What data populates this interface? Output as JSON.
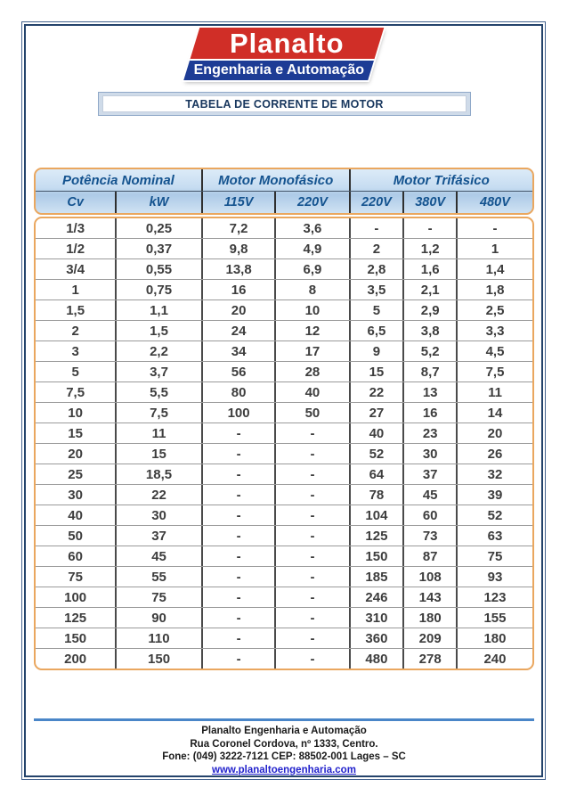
{
  "logo": {
    "name": "Planalto",
    "tagline": "Engenharia e Automação"
  },
  "title": "TABELA DE CORRENTE DE MOTOR",
  "table": {
    "groups": [
      {
        "label": "Potência Nominal",
        "cols": 2
      },
      {
        "label": "Motor Monofásico",
        "cols": 2
      },
      {
        "label": "Motor Trifásico",
        "cols": 3
      }
    ],
    "columns": [
      "Cv",
      "kW",
      "115V",
      "220V",
      "220V",
      "380V",
      "480V"
    ],
    "rows": [
      [
        "1/3",
        "0,25",
        "7,2",
        "3,6",
        "-",
        "-",
        "-"
      ],
      [
        "1/2",
        "0,37",
        "9,8",
        "4,9",
        "2",
        "1,2",
        "1"
      ],
      [
        "3/4",
        "0,55",
        "13,8",
        "6,9",
        "2,8",
        "1,6",
        "1,4"
      ],
      [
        "1",
        "0,75",
        "16",
        "8",
        "3,5",
        "2,1",
        "1,8"
      ],
      [
        "1,5",
        "1,1",
        "20",
        "10",
        "5",
        "2,9",
        "2,5"
      ],
      [
        "2",
        "1,5",
        "24",
        "12",
        "6,5",
        "3,8",
        "3,3"
      ],
      [
        "3",
        "2,2",
        "34",
        "17",
        "9",
        "5,2",
        "4,5"
      ],
      [
        "5",
        "3,7",
        "56",
        "28",
        "15",
        "8,7",
        "7,5"
      ],
      [
        "7,5",
        "5,5",
        "80",
        "40",
        "22",
        "13",
        "11"
      ],
      [
        "10",
        "7,5",
        "100",
        "50",
        "27",
        "16",
        "14"
      ],
      [
        "15",
        "11",
        "-",
        "-",
        "40",
        "23",
        "20"
      ],
      [
        "20",
        "15",
        "-",
        "-",
        "52",
        "30",
        "26"
      ],
      [
        "25",
        "18,5",
        "-",
        "-",
        "64",
        "37",
        "32"
      ],
      [
        "30",
        "22",
        "-",
        "-",
        "78",
        "45",
        "39"
      ],
      [
        "40",
        "30",
        "-",
        "-",
        "104",
        "60",
        "52"
      ],
      [
        "50",
        "37",
        "-",
        "-",
        "125",
        "73",
        "63"
      ],
      [
        "60",
        "45",
        "-",
        "-",
        "150",
        "87",
        "75"
      ],
      [
        "75",
        "55",
        "-",
        "-",
        "185",
        "108",
        "93"
      ],
      [
        "100",
        "75",
        "-",
        "-",
        "246",
        "143",
        "123"
      ],
      [
        "125",
        "90",
        "-",
        "-",
        "310",
        "180",
        "155"
      ],
      [
        "150",
        "110",
        "-",
        "-",
        "360",
        "209",
        "180"
      ],
      [
        "200",
        "150",
        "-",
        "-",
        "480",
        "278",
        "240"
      ]
    ]
  },
  "footer": {
    "company": "Planalto Engenharia e Automação",
    "address": "Rua Coronel Cordova, nº 1333, Centro.",
    "phone_line": "Fone: (049) 3222-7121 CEP: 88502-001  Lages – SC",
    "website": "www.planaltoengenharia.com"
  },
  "colors": {
    "logo_red": "#d02e27",
    "logo_blue": "#1d3c95",
    "header_text_blue": "#14538f",
    "table_border_orange": "#eaa75f",
    "page_border_navy": "#24436b",
    "footer_rule_blue": "#4a86c8",
    "link_blue": "#2222cc"
  }
}
